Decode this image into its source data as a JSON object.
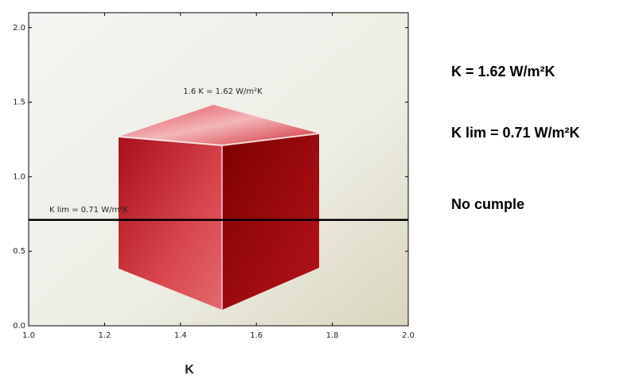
{
  "chart_data": {
    "type": "reference-line",
    "xlabel": "K",
    "annotation": "1.6 K = 1.62 W/m²K",
    "lines": [
      {
        "name": "K lim = 0.71 W/m²K",
        "value": 0.71,
        "color": "#000000"
      }
    ],
    "xlim": [
      1,
      2
    ],
    "ylim": [
      0,
      2.1
    ],
    "xticks": [
      {
        "value": 1,
        "label": "1.0"
      },
      1.2,
      1.4,
      1.6,
      1.8,
      {
        "value": 2,
        "label": "2.0"
      }
    ],
    "yticks": [
      {
        "value": 0,
        "label": "0.0"
      },
      0.5,
      {
        "value": 1,
        "label": "1.0"
      },
      1.5,
      {
        "value": 2,
        "label": "2.0"
      }
    ]
  },
  "summary": {
    "lines": [
      "K = 1.62 W/m²K",
      "K lim = 0.71 W/m²K",
      "No cumple"
    ]
  }
}
